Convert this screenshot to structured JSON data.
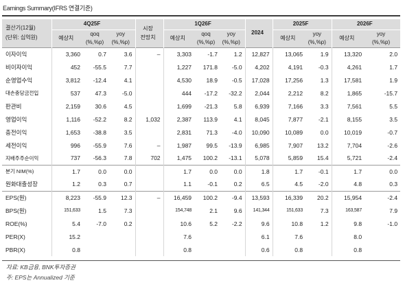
{
  "title": "Earnings Summary(IFRS 연결기준)",
  "header": {
    "row_label_line1": "결산기(12월)",
    "row_label_line2": "(단위: 십억원)",
    "groups": {
      "q4_25f": "4Q25F",
      "market": "시장",
      "market2": "전망치",
      "q1_26f": "1Q26F",
      "y2024": "2024",
      "y2025f": "2025F",
      "y2026f": "2026F"
    },
    "sub": {
      "estimate": "예상치",
      "qoq": "qoq",
      "yoy": "yoy",
      "pct": "(%,%p)"
    }
  },
  "rows": [
    {
      "label": "이자이익",
      "v": [
        "3,360",
        "0.7",
        "3.6",
        "–",
        "3,303",
        "-1.7",
        "1.2",
        "12,827",
        "13,065",
        "1.9",
        "13,320",
        "2.0"
      ]
    },
    {
      "label": "비이자이익",
      "v": [
        "452",
        "-55.5",
        "7.7",
        "",
        "1,227",
        "171.8",
        "-5.0",
        "4,202",
        "4,191",
        "-0.3",
        "4,261",
        "1.7"
      ]
    },
    {
      "label": "순영업수익",
      "v": [
        "3,812",
        "-12.4",
        "4.1",
        "",
        "4,530",
        "18.9",
        "-0.5",
        "17,028",
        "17,256",
        "1.3",
        "17,581",
        "1.9"
      ]
    },
    {
      "label": "대손충당금전입",
      "v": [
        "537",
        "47.3",
        "-5.0",
        "",
        "444",
        "-17.2",
        "-32.2",
        "2,044",
        "2,212",
        "8.2",
        "1,865",
        "-15.7"
      ]
    },
    {
      "label": "판관비",
      "v": [
        "2,159",
        "30.6",
        "4.5",
        "",
        "1,699",
        "-21.3",
        "5.8",
        "6,939",
        "7,166",
        "3.3",
        "7,561",
        "5.5"
      ]
    },
    {
      "label": "영업이익",
      "v": [
        "1,116",
        "-52.2",
        "8.2",
        "1,032",
        "2,387",
        "113.9",
        "4.1",
        "8,045",
        "7,877",
        "-2.1",
        "8,155",
        "3.5"
      ]
    },
    {
      "label": "충전이익",
      "v": [
        "1,653",
        "-38.8",
        "3.5",
        "",
        "2,831",
        "71.3",
        "-4.0",
        "10,090",
        "10,089",
        "0.0",
        "10,019",
        "-0.7"
      ]
    },
    {
      "label": "세전이익",
      "v": [
        "996",
        "-55.9",
        "7.6",
        "–",
        "1,987",
        "99.5",
        "-13.9",
        "6,985",
        "7,907",
        "13.2",
        "7,704",
        "-2.6"
      ]
    },
    {
      "label": "지배주주순이익",
      "v": [
        "737",
        "-56.3",
        "7.8",
        "702",
        "1,475",
        "100.2",
        "-13.1",
        "5,078",
        "5,859",
        "15.4",
        "5,721",
        "-2.4"
      ]
    },
    {
      "label": "분기 NIM(%)",
      "v": [
        "1.7",
        "0.0",
        "0.0",
        "",
        "1.7",
        "0.0",
        "0.0",
        "1.8",
        "1.7",
        "-0.1",
        "1.7",
        "0.0"
      ]
    },
    {
      "label": "원화대출성장",
      "v": [
        "1.2",
        "0.3",
        "0.7",
        "",
        "1.1",
        "-0.1",
        "0.2",
        "6.5",
        "4.5",
        "-2.0",
        "4.8",
        "0.3"
      ]
    },
    {
      "label": "EPS(원)",
      "v": [
        "8,223",
        "-55.9",
        "12.3",
        "–",
        "16,459",
        "100.2",
        "-9.4",
        "13,593",
        "16,339",
        "20.2",
        "15,954",
        "-2.4"
      ]
    },
    {
      "label": "BPS(원)",
      "v": [
        "151,633",
        "1.5",
        "7.3",
        "",
        "154,748",
        "2.1",
        "9.6",
        "141,344",
        "151,633",
        "7.3",
        "163,587",
        "7.9"
      ]
    },
    {
      "label": "ROE(%)",
      "v": [
        "5.4",
        "-7.0",
        "0.2",
        "",
        "10.6",
        "5.2",
        "-2.2",
        "9.6",
        "10.8",
        "1.2",
        "9.8",
        "-1.0"
      ]
    },
    {
      "label": "PER(X)",
      "v": [
        "15.2",
        "",
        "",
        "",
        "7.6",
        "",
        "",
        "6.1",
        "7.6",
        "",
        "8.0",
        ""
      ]
    },
    {
      "label": "PBR(X)",
      "v": [
        "0.8",
        "",
        "",
        "",
        "0.8",
        "",
        "",
        "0.6",
        "0.8",
        "",
        "0.8",
        ""
      ]
    }
  ],
  "source_line1": "자료: KB금융, BNK투자증권",
  "source_line2": "주: EPS는 Annualized 기준"
}
